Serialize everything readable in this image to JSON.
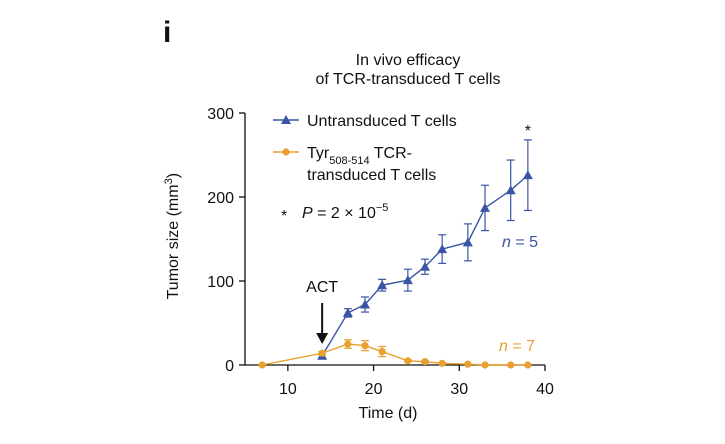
{
  "panel_letter": "i",
  "chart_data": {
    "type": "line",
    "title_lines": [
      "In vivo efficacy",
      "of TCR-transduced T cells"
    ],
    "xlabel": "Time (d)",
    "ylabel_main": "Tumor size (mm",
    "ylabel_sup": "3",
    "ylabel_close": ")",
    "xlim": [
      5,
      40
    ],
    "ylim": [
      0,
      300
    ],
    "xticks": [
      10,
      20,
      30,
      40
    ],
    "yticks": [
      0,
      100,
      200,
      300
    ],
    "series": [
      {
        "name": "Untransduced T cells",
        "color": "#3a55a4",
        "marker": "triangle",
        "points": [
          {
            "x": 14,
            "y": 11,
            "err": 0
          },
          {
            "x": 17,
            "y": 62,
            "err": 5
          },
          {
            "x": 19,
            "y": 72,
            "err": 9
          },
          {
            "x": 21,
            "y": 95,
            "err": 7
          },
          {
            "x": 24,
            "y": 101,
            "err": 13
          },
          {
            "x": 26,
            "y": 117,
            "err": 9
          },
          {
            "x": 28,
            "y": 138,
            "err": 17
          },
          {
            "x": 31,
            "y": 146,
            "err": 22
          },
          {
            "x": 33,
            "y": 187,
            "err": 27
          },
          {
            "x": 36,
            "y": 208,
            "err": 36
          },
          {
            "x": 38,
            "y": 226,
            "err": 42
          }
        ]
      },
      {
        "name_main": "Tyr",
        "name_sub": "508-514",
        "name_rest": " TCR-",
        "name_line2": "transduced T cells",
        "color": "#e8a030",
        "marker": "circle",
        "points": [
          {
            "x": 7,
            "y": 0,
            "err": 0
          },
          {
            "x": 14,
            "y": 14,
            "err": 2
          },
          {
            "x": 17,
            "y": 25,
            "err": 5
          },
          {
            "x": 19,
            "y": 23,
            "err": 6
          },
          {
            "x": 21,
            "y": 16,
            "err": 6
          },
          {
            "x": 24,
            "y": 5,
            "err": 1
          },
          {
            "x": 26,
            "y": 4,
            "err": 1
          },
          {
            "x": 28,
            "y": 2,
            "err": 0
          },
          {
            "x": 31,
            "y": 1,
            "err": 0
          },
          {
            "x": 33,
            "y": 0,
            "err": 0
          },
          {
            "x": 36,
            "y": 0,
            "err": 0
          },
          {
            "x": 38,
            "y": 0,
            "err": 0
          }
        ]
      }
    ],
    "annotations": {
      "pvalue_star": "*",
      "pvalue_text_p": "P",
      "pvalue_text_mid": " = 2 × 10",
      "pvalue_exp": "−5",
      "significance_star": "*",
      "significance_x": 38,
      "act_label": "ACT",
      "act_x": 14,
      "n_untransduced": {
        "n": "n",
        "eq": " = 5"
      },
      "n_tcr": {
        "n": "n",
        "eq": " = 7"
      }
    }
  }
}
